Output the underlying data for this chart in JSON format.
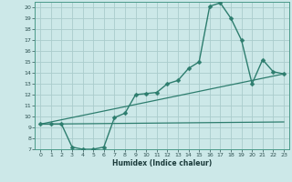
{
  "xlabel": "Humidex (Indice chaleur)",
  "ylabel": "",
  "bg_color": "#cce8e8",
  "line_color": "#2d7d6e",
  "grid_color": "#aacccc",
  "xlim": [
    -0.5,
    23.5
  ],
  "ylim": [
    7,
    20.5
  ],
  "xticks": [
    0,
    1,
    2,
    3,
    4,
    5,
    6,
    7,
    8,
    9,
    10,
    11,
    12,
    13,
    14,
    15,
    16,
    17,
    18,
    19,
    20,
    21,
    22,
    23
  ],
  "yticks": [
    7,
    8,
    9,
    10,
    11,
    12,
    13,
    14,
    15,
    16,
    17,
    18,
    19,
    20
  ],
  "line1_x": [
    0,
    1,
    2,
    3,
    4,
    5,
    6,
    7,
    8,
    9,
    10,
    11,
    12,
    13,
    14,
    15,
    16,
    17,
    18,
    19,
    20,
    21,
    22,
    23
  ],
  "line1_y": [
    9.3,
    9.3,
    9.3,
    7.2,
    7.0,
    7.0,
    7.2,
    9.9,
    10.3,
    12.0,
    12.1,
    12.2,
    13.0,
    13.3,
    14.4,
    15.0,
    20.1,
    20.4,
    19.0,
    17.0,
    13.0,
    15.2,
    14.1,
    13.9
  ],
  "line2_x": [
    0,
    23
  ],
  "line2_y": [
    9.3,
    13.9
  ],
  "line3_x": [
    0,
    23
  ],
  "line3_y": [
    9.3,
    9.5
  ]
}
